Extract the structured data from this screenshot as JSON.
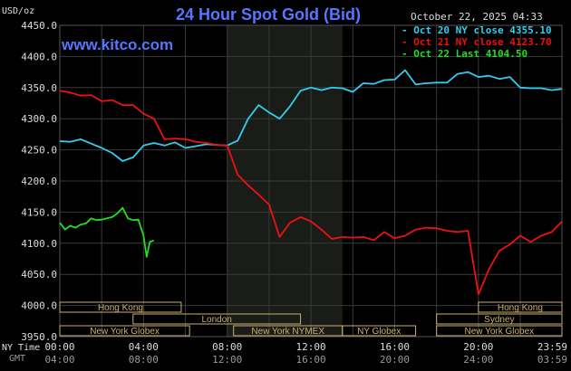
{
  "chart_data": {
    "type": "line",
    "title": "24 Hour Spot Gold (Bid)",
    "website": "www.kitco.com",
    "timestamp": "October 22, 2025 04:33",
    "ylabel": "USD/oz",
    "ylim": [
      3950,
      4450
    ],
    "y_ticks": [
      "4450.0",
      "4400.0",
      "4350.0",
      "4300.0",
      "4250.0",
      "4200.0",
      "4150.0",
      "4100.0",
      "4050.0",
      "4000.0",
      "3950.0"
    ],
    "x_ticks_ny": [
      "00:00",
      "04:00",
      "08:00",
      "12:00",
      "16:00",
      "20:00",
      "23:59"
    ],
    "x_ticks_gmt": [
      "04:00",
      "08:00",
      "12:00",
      "16:00",
      "20:00",
      "24:00",
      "03:59"
    ],
    "ny_time_label": "NY Time",
    "gmt_label": "GMT",
    "grid": true,
    "legend_position": "top-right",
    "colors": {
      "oct20": "#33ccee",
      "oct21": "#ee1111",
      "oct22": "#22dd22",
      "title": "#5577ff",
      "website": "#5577ff",
      "session_bar": "#c8b070",
      "text": "#dddddd"
    },
    "legend": [
      {
        "label": "Oct 20 NY close 4355.10",
        "series": "oct20"
      },
      {
        "label": "Oct 21 NY close 4123.70",
        "series": "oct21"
      },
      {
        "label": "Oct 22 Last 4104.50",
        "series": "oct22"
      }
    ],
    "market_sessions": [
      {
        "label": "Hong Kong",
        "start": 0,
        "end": 5.8
      },
      {
        "label": "London",
        "start": 3.5,
        "end": 11.5
      },
      {
        "label": "New York Globex",
        "start": 0,
        "end": 6.2
      },
      {
        "label": "New York NYMEX",
        "start": 8.3,
        "end": 13.5
      },
      {
        "label": "NY Globex",
        "start": 13.5,
        "end": 17.0
      },
      {
        "label": "Hong Kong",
        "start": 20.0,
        "end": 23.99
      },
      {
        "label": "Sydney",
        "start": 18.0,
        "end": 23.99
      },
      {
        "label": "New York Globex",
        "start": 18.0,
        "end": 23.99
      }
    ],
    "x_unit": "hours (NY time)",
    "series": [
      {
        "key": "oct20",
        "x": [
          0,
          0.5,
          1,
          1.5,
          2,
          2.5,
          3,
          3.5,
          4,
          4.5,
          5,
          5.5,
          6,
          6.5,
          7,
          7.5,
          8,
          8.5,
          9,
          9.5,
          10,
          10.5,
          11,
          11.5,
          12,
          12.5,
          13,
          13.5,
          14,
          14.5,
          15,
          15.5,
          16,
          16.5,
          17,
          17.5,
          18,
          18.5,
          19,
          19.5,
          20,
          20.5,
          21,
          21.5,
          22,
          22.5,
          23,
          23.5,
          23.99
        ],
        "values": [
          4264,
          4263,
          4267,
          4260,
          4253,
          4245,
          4232,
          4238,
          4257,
          4261,
          4257,
          4262,
          4253,
          4256,
          4259,
          4258,
          4257,
          4265,
          4300,
          4322,
          4310,
          4300,
          4320,
          4345,
          4350,
          4346,
          4350,
          4349,
          4343,
          4357,
          4356,
          4362,
          4363,
          4378,
          4355,
          4357,
          4358,
          4358,
          4372,
          4375,
          4367,
          4369,
          4364,
          4367,
          4350,
          4349,
          4349,
          4346,
          4348
        ]
      },
      {
        "key": "oct21",
        "x": [
          0,
          0.5,
          1,
          1.5,
          2,
          2.5,
          3,
          3.5,
          4,
          4.5,
          5,
          5.5,
          6,
          6.5,
          7,
          7.5,
          8,
          8.5,
          9,
          9.5,
          10,
          10.5,
          11,
          11.5,
          12,
          12.5,
          13,
          13.5,
          14,
          14.5,
          15,
          15.5,
          16,
          16.5,
          17,
          17.5,
          18,
          18.5,
          19,
          19.5,
          20,
          20.5,
          21,
          21.5,
          22,
          22.5,
          23,
          23.5,
          23.99
        ],
        "values": [
          4345,
          4342,
          4337,
          4338,
          4328,
          4330,
          4322,
          4322,
          4308,
          4300,
          4267,
          4268,
          4267,
          4263,
          4261,
          4258,
          4257,
          4210,
          4193,
          4178,
          4162,
          4110,
          4133,
          4142,
          4135,
          4122,
          4107,
          4110,
          4109,
          4110,
          4105,
          4118,
          4108,
          4112,
          4122,
          4125,
          4124,
          4120,
          4118,
          4120,
          4018,
          4058,
          4088,
          4098,
          4112,
          4102,
          4112,
          4118,
          4135
        ]
      },
      {
        "key": "oct22",
        "x": [
          0,
          0.25,
          0.5,
          0.75,
          1,
          1.25,
          1.5,
          1.75,
          2,
          2.25,
          2.5,
          2.75,
          3,
          3.25,
          3.5,
          3.75,
          4,
          4.15,
          4.3,
          4.5
        ],
        "values": [
          4133,
          4122,
          4128,
          4125,
          4130,
          4132,
          4140,
          4137,
          4138,
          4140,
          4142,
          4148,
          4157,
          4140,
          4137,
          4138,
          4112,
          4078,
          4102,
          4104.5
        ]
      }
    ]
  }
}
